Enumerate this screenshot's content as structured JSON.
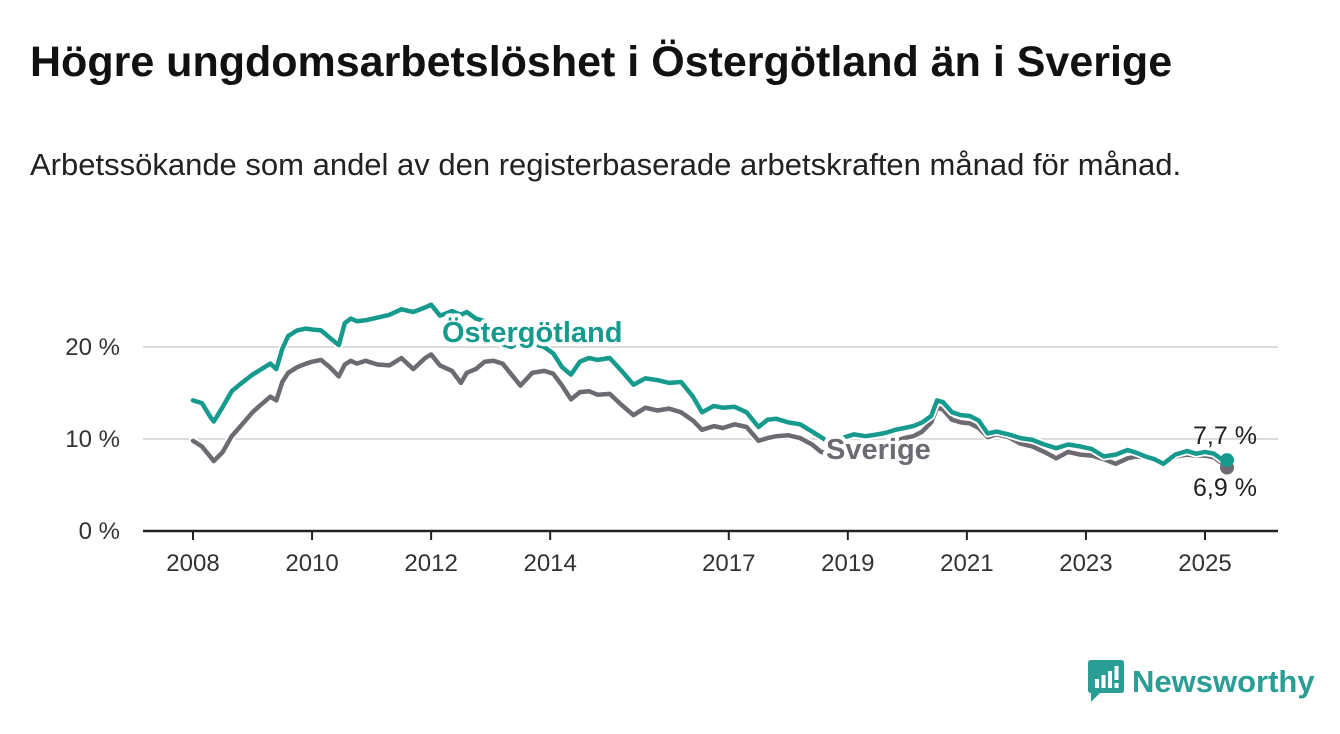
{
  "header": {
    "title": "Högre ungdomsarbetslöshet i Östergötland än i Sverige",
    "subtitle": "Arbetssökande som andel av den registerbaserade arbetskraften månad för månad."
  },
  "brand": {
    "name": "Newsworthy",
    "icon": "newsworthy-logo-icon",
    "color": "#2a9d95"
  },
  "chart_data": {
    "type": "line",
    "title": "Högre ungdomsarbetslöshet i Östergötland än i Sverige",
    "subtitle": "Arbetssökande som andel av den registerbaserade arbetskraften månad för månad.",
    "xlabel": "",
    "ylabel": "",
    "ylim": [
      0,
      25
    ],
    "xlim": [
      2007.5,
      2026.2
    ],
    "yticks": [
      0,
      10,
      20
    ],
    "ytick_labels": [
      "0 %",
      "10 %",
      "20 %"
    ],
    "xticks": [
      2008,
      2010,
      2012,
      2014,
      2017,
      2019,
      2021,
      2023,
      2025
    ],
    "xtick_labels": [
      "2008",
      "2010",
      "2012",
      "2014",
      "2017",
      "2019",
      "2021",
      "2023",
      "2025"
    ],
    "grid": true,
    "legend": "direct labels",
    "series": [
      {
        "name": "Östergötland",
        "color": "#179a8e",
        "end_label": "7,7 %",
        "x": [
          2008.0,
          2008.15,
          2008.3,
          2008.35,
          2008.5,
          2008.65,
          2008.8,
          2009.0,
          2009.1,
          2009.3,
          2009.4,
          2009.5,
          2009.6,
          2009.75,
          2009.9,
          2010.0,
          2010.15,
          2010.3,
          2010.45,
          2010.55,
          2010.65,
          2010.75,
          2010.9,
          2011.1,
          2011.3,
          2011.5,
          2011.7,
          2011.9,
          2012.0,
          2012.15,
          2012.35,
          2012.5,
          2012.6,
          2012.75,
          2012.9,
          2013.05,
          2013.2,
          2013.35,
          2013.5,
          2013.7,
          2013.9,
          2014.05,
          2014.2,
          2014.35,
          2014.5,
          2014.65,
          2014.8,
          2015.0,
          2015.2,
          2015.4,
          2015.6,
          2015.8,
          2016.0,
          2016.2,
          2016.4,
          2016.55,
          2016.75,
          2016.9,
          2017.1,
          2017.3,
          2017.5,
          2017.65,
          2017.8,
          2018.0,
          2018.2,
          2018.4,
          2018.55,
          2018.75,
          2018.95,
          2019.1,
          2019.3,
          2019.5,
          2019.65,
          2019.8,
          2019.95,
          2020.1,
          2020.25,
          2020.4,
          2020.5,
          2020.6,
          2020.75,
          2020.9,
          2021.05,
          2021.2,
          2021.35,
          2021.5,
          2021.7,
          2021.9,
          2022.1,
          2022.3,
          2022.5,
          2022.7,
          2022.9,
          2023.1,
          2023.3,
          2023.5,
          2023.7,
          2023.85,
          2024.0,
          2024.15,
          2024.3,
          2024.5,
          2024.7,
          2024.85,
          2025.0,
          2025.15,
          2025.3,
          2025.37
        ],
        "values": [
          14.2,
          13.9,
          12.3,
          11.9,
          13.5,
          15.2,
          16.0,
          17.0,
          17.4,
          18.2,
          17.6,
          19.8,
          21.2,
          21.8,
          22.0,
          21.9,
          21.8,
          21.0,
          20.2,
          22.6,
          23.1,
          22.8,
          22.9,
          23.2,
          23.5,
          24.1,
          23.8,
          24.3,
          24.6,
          23.4,
          23.9,
          23.5,
          23.8,
          23.1,
          22.8,
          21.4,
          20.3,
          20.0,
          20.6,
          20.4,
          20.0,
          19.3,
          17.8,
          17.0,
          18.4,
          18.8,
          18.6,
          18.8,
          17.4,
          15.9,
          16.6,
          16.4,
          16.1,
          16.2,
          14.6,
          12.9,
          13.6,
          13.4,
          13.5,
          12.9,
          11.3,
          12.1,
          12.2,
          11.8,
          11.6,
          10.8,
          10.2,
          9.4,
          10.2,
          10.5,
          10.3,
          10.5,
          10.7,
          11.0,
          11.2,
          11.4,
          11.8,
          12.5,
          14.2,
          14.0,
          12.9,
          12.6,
          12.5,
          12.0,
          10.6,
          10.8,
          10.5,
          10.1,
          9.9,
          9.4,
          9.0,
          9.4,
          9.2,
          8.9,
          8.1,
          8.3,
          8.8,
          8.5,
          8.1,
          7.8,
          7.3,
          8.3,
          8.7,
          8.4,
          8.6,
          8.4,
          7.7,
          7.7
        ]
      },
      {
        "name": "Sverige",
        "color": "#6d6a72",
        "end_label": "6,9 %",
        "x": [
          2008.0,
          2008.15,
          2008.3,
          2008.35,
          2008.5,
          2008.65,
          2008.8,
          2009.0,
          2009.1,
          2009.3,
          2009.4,
          2009.5,
          2009.6,
          2009.75,
          2009.9,
          2010.0,
          2010.15,
          2010.3,
          2010.45,
          2010.55,
          2010.65,
          2010.75,
          2010.9,
          2011.1,
          2011.3,
          2011.5,
          2011.7,
          2011.9,
          2012.0,
          2012.15,
          2012.35,
          2012.5,
          2012.6,
          2012.75,
          2012.9,
          2013.05,
          2013.2,
          2013.35,
          2013.5,
          2013.7,
          2013.9,
          2014.05,
          2014.2,
          2014.35,
          2014.5,
          2014.65,
          2014.8,
          2015.0,
          2015.2,
          2015.4,
          2015.6,
          2015.8,
          2016.0,
          2016.2,
          2016.4,
          2016.55,
          2016.75,
          2016.9,
          2017.1,
          2017.3,
          2017.5,
          2017.65,
          2017.8,
          2018.0,
          2018.2,
          2018.4,
          2018.55,
          2018.75,
          2018.95,
          2019.1,
          2019.3,
          2019.5,
          2019.65,
          2019.8,
          2019.95,
          2020.1,
          2020.25,
          2020.4,
          2020.5,
          2020.6,
          2020.75,
          2020.9,
          2021.05,
          2021.2,
          2021.35,
          2021.5,
          2021.7,
          2021.9,
          2022.1,
          2022.3,
          2022.5,
          2022.7,
          2022.9,
          2023.1,
          2023.3,
          2023.5,
          2023.7,
          2023.85,
          2024.0,
          2024.15,
          2024.3,
          2024.5,
          2024.7,
          2024.85,
          2025.0,
          2025.15,
          2025.3,
          2025.37
        ],
        "values": [
          9.8,
          9.2,
          8.0,
          7.6,
          8.6,
          10.3,
          11.4,
          12.9,
          13.5,
          14.6,
          14.2,
          16.2,
          17.2,
          17.8,
          18.2,
          18.4,
          18.6,
          17.8,
          16.8,
          18.1,
          18.5,
          18.2,
          18.5,
          18.1,
          18.0,
          18.8,
          17.6,
          18.8,
          19.2,
          18.0,
          17.4,
          16.1,
          17.2,
          17.6,
          18.4,
          18.5,
          18.2,
          17.0,
          15.8,
          17.2,
          17.4,
          17.1,
          15.8,
          14.3,
          15.1,
          15.2,
          14.8,
          14.9,
          13.7,
          12.6,
          13.4,
          13.1,
          13.3,
          12.9,
          12.0,
          11.0,
          11.4,
          11.2,
          11.6,
          11.3,
          9.8,
          10.1,
          10.3,
          10.4,
          10.1,
          9.4,
          8.6,
          8.3,
          8.9,
          9.2,
          9.0,
          9.2,
          9.5,
          9.8,
          10.1,
          10.3,
          10.8,
          11.8,
          13.4,
          13.2,
          12.1,
          11.8,
          11.7,
          11.2,
          10.2,
          10.5,
          10.2,
          9.5,
          9.2,
          8.6,
          7.9,
          8.6,
          8.3,
          8.2,
          7.8,
          7.3,
          7.9,
          8.1,
          8.0,
          7.9,
          7.1,
          8.1,
          8.3,
          8.2,
          8.2,
          8.0,
          7.3,
          6.9
        ]
      }
    ]
  }
}
